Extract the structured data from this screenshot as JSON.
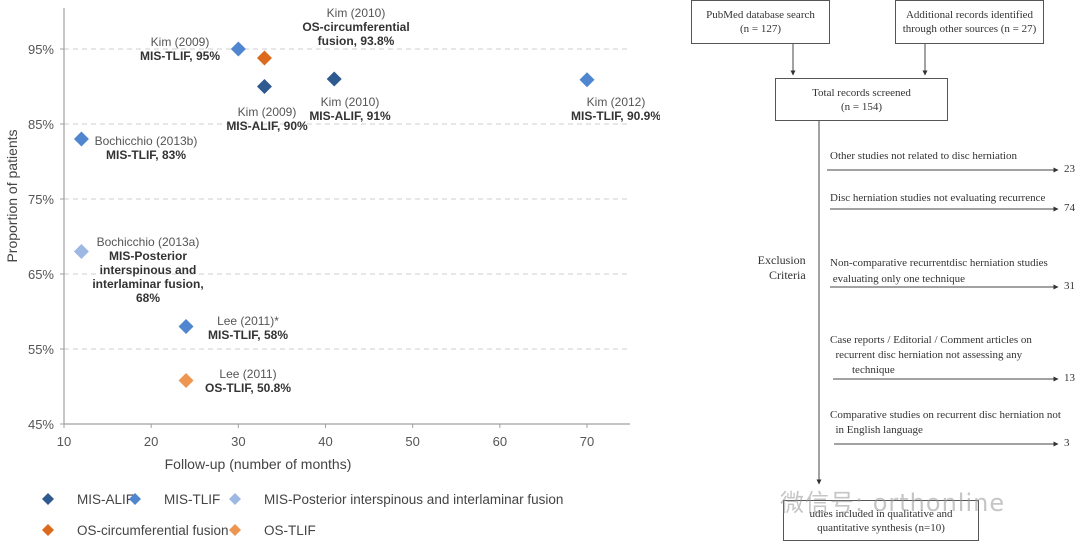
{
  "chart_data": {
    "type": "scatter",
    "title": "",
    "xlabel": "Follow-up (number of months)",
    "ylabel": "Proportion of patients",
    "xlim": [
      10,
      75
    ],
    "ylim": [
      45,
      100
    ],
    "x_ticks": [
      10,
      20,
      30,
      40,
      50,
      60,
      70
    ],
    "x_tick_labels": [
      "10",
      "20",
      "30",
      "40",
      "50",
      "60",
      "70"
    ],
    "y_ticks": [
      45,
      55,
      65,
      75,
      85,
      95
    ],
    "y_tick_labels": [
      "45%",
      "55%",
      "65%",
      "75%",
      "85%",
      "95%"
    ],
    "grid": "horizontal-dashed",
    "legend_position": "bottom",
    "series": [
      {
        "name": "MIS-ALIF",
        "color": "#2f5a8f",
        "points": [
          {
            "x": 33,
            "y": 90,
            "study": "Kim (2009)",
            "label": "MIS-ALIF, 90%"
          },
          {
            "x": 41,
            "y": 91,
            "study": "Kim (2010)",
            "label": "MIS-ALIF, 91%"
          }
        ]
      },
      {
        "name": "MIS-TLIF",
        "color": "#4f86cf",
        "points": [
          {
            "x": 30,
            "y": 95,
            "study": "Kim (2009)",
            "label": "MIS-TLIF, 95%"
          },
          {
            "x": 70,
            "y": 90.9,
            "study": "Kim (2012)",
            "label": "MIS-TLIF, 90.9%"
          },
          {
            "x": 12,
            "y": 83,
            "study": "Bochicchio (2013b)",
            "label": "MIS-TLIF, 83%"
          },
          {
            "x": 24,
            "y": 58,
            "study": "Lee (2011)*",
            "label": "MIS-TLIF, 58%"
          }
        ]
      },
      {
        "name": "MIS-Posterior interspinous and interlaminar fusion",
        "color": "#9db8e2",
        "points": [
          {
            "x": 12,
            "y": 68,
            "study": "Bochicchio (2013a)",
            "label": "MIS-Posterior interspinous and interlaminar fusion, 68%"
          }
        ]
      },
      {
        "name": "OS-circumferential fusion",
        "color": "#dc6a1c",
        "points": [
          {
            "x": 33,
            "y": 93.8,
            "study": "Kim (2010)",
            "label": "OS-circumferential fusion, 93.8%"
          }
        ]
      },
      {
        "name": "OS-TLIF",
        "color": "#ee9550",
        "points": [
          {
            "x": 24,
            "y": 50.8,
            "study": "Lee (2011)",
            "label": "OS-TLIF, 50.8%"
          }
        ]
      }
    ],
    "annotations": [
      {
        "id": "kim2009-tlif",
        "lines": [
          "Kim (2009)",
          "MIS-TLIF, 95%"
        ]
      },
      {
        "id": "kim2010-os",
        "lines": [
          "Kim (2010)",
          "OS-circumferential",
          "fusion, 93.8%"
        ]
      },
      {
        "id": "kim2009-alif",
        "lines": [
          "Kim (2009)",
          "MIS-ALIF, 90%"
        ]
      },
      {
        "id": "kim2010-alif",
        "lines": [
          "Kim (2010)",
          "MIS-ALIF, 91%"
        ]
      },
      {
        "id": "kim2012-tlif",
        "lines": [
          "Kim (2012)",
          "MIS-TLIF, 90.9%"
        ]
      },
      {
        "id": "boch2013b",
        "lines": [
          "Bochicchio (2013b)",
          "MIS-TLIF, 83%"
        ]
      },
      {
        "id": "boch2013a",
        "lines": [
          "Bochicchio (2013a)",
          "MIS-Posterior",
          "interspinous and",
          "interlaminar fusion,",
          "68%"
        ]
      },
      {
        "id": "lee2011-mis",
        "lines": [
          "Lee (2011)*",
          "MIS-TLIF, 58%"
        ]
      },
      {
        "id": "lee2011-os",
        "lines": [
          "Lee (2011)",
          "OS-TLIF, 50.8%"
        ]
      }
    ]
  },
  "flowchart": {
    "pubmed": {
      "line1": "PubMed  database search",
      "line2": "(n = 127)"
    },
    "additional": {
      "line1": "Additional records identified",
      "line2": "through other sources (n = 27)"
    },
    "screened": {
      "line1": "Total  records screened",
      "line2": "(n = 154)"
    },
    "exclusion_label": {
      "line1": "Exclusion",
      "line2": "Criteria"
    },
    "exclusions": [
      {
        "lines": [
          "Other studies not related to disc herniation"
        ],
        "count": "23"
      },
      {
        "lines": [
          "Disc herniation studies not evaluating recurrence"
        ],
        "count": "74"
      },
      {
        "lines": [
          "Non-comparative recurrentdisc herniation studies",
          " evaluating only one technique"
        ],
        "count": "31"
      },
      {
        "lines": [
          "Case reports / Editorial / Comment articles on",
          "  recurrent disc herniation not assessing any",
          "        technique"
        ],
        "count": "13"
      },
      {
        "lines": [
          "Comparative studies on recurrent disc herniation not",
          "  in English language"
        ],
        "count": "3"
      }
    ],
    "included": {
      "line1": "udies included in qualitative and",
      "line2": "quantitative  synthesis (n=10)"
    },
    "watermark": "微信号: orthonline"
  }
}
